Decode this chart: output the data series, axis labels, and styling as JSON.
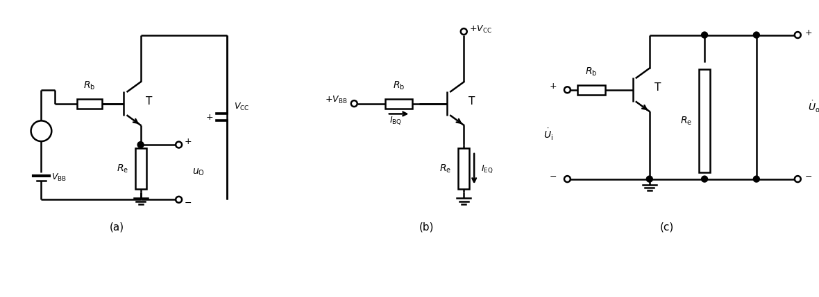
{
  "bg_color": "#ffffff",
  "line_color": "#000000",
  "line_width": 1.8,
  "fig_width": 11.8,
  "fig_height": 4.29,
  "dpi": 100,
  "label_a": "(a)",
  "label_b": "(b)",
  "label_c": "(c)"
}
